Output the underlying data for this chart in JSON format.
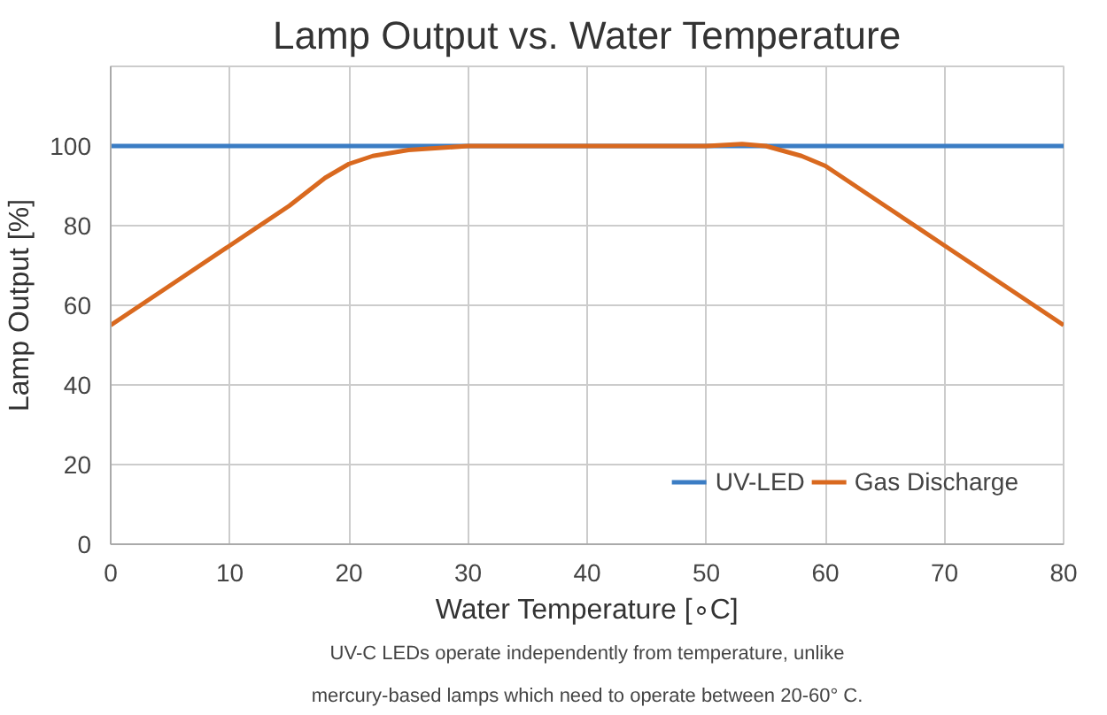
{
  "chart_data": {
    "type": "line",
    "title": "Lamp Output vs. Water Temperature",
    "xlabel": "Water Temperature [∘C]",
    "ylabel": "Lamp Output [%]",
    "xlim": [
      0,
      80
    ],
    "xticks": [
      0,
      10,
      20,
      30,
      40,
      50,
      60,
      70,
      80
    ],
    "ylim": [
      0,
      120
    ],
    "yticks": [
      0,
      20,
      40,
      60,
      80,
      100
    ],
    "grid": true,
    "legend": "bottom right",
    "series": [
      {
        "name": "UV-LED",
        "color": "#3b7dc4",
        "x": [
          0,
          80
        ],
        "values": [
          100,
          100
        ]
      },
      {
        "name": "Gas Discharge",
        "color": "#d9691f",
        "x": [
          0,
          5,
          10,
          15,
          18,
          20,
          22,
          25,
          30,
          40,
          50,
          53,
          55,
          58,
          60,
          65,
          70,
          75,
          80
        ],
        "values": [
          55,
          65,
          75,
          85,
          92,
          95.5,
          97.5,
          99,
          100,
          100,
          100,
          100.5,
          100,
          97.5,
          95,
          85,
          75,
          65,
          55
        ]
      }
    ],
    "annotations": [
      "UV-C LEDs operate independently from temperature, unlike",
      "mercury-based lamps which need to operate between 20-60° C."
    ]
  }
}
